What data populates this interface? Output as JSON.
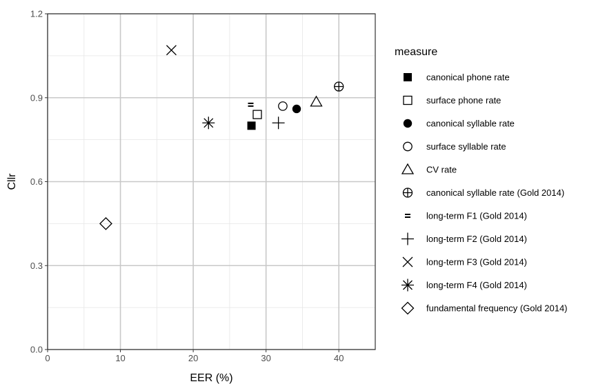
{
  "chart_data": {
    "type": "scatter",
    "xlabel": "EER (%)",
    "ylabel": "Cllr",
    "xlim": [
      0,
      45
    ],
    "ylim": [
      0,
      1.2
    ],
    "x_ticks": [
      0,
      10,
      20,
      30,
      40
    ],
    "y_ticks": [
      0.0,
      0.3,
      0.6,
      0.9,
      1.2
    ],
    "x_tick_labels": [
      "0",
      "10",
      "20",
      "30",
      "40"
    ],
    "y_tick_labels": [
      "0.0",
      "0.3",
      "0.6",
      "0.9",
      "1.2"
    ],
    "grid": true,
    "legend_title": "measure",
    "legend_position": "right",
    "series": [
      {
        "name": "canonical phone rate",
        "shape": "filled-square",
        "x": 28.0,
        "y": 0.8
      },
      {
        "name": "surface phone rate",
        "shape": "open-square",
        "x": 28.8,
        "y": 0.84
      },
      {
        "name": "canonical syllable rate",
        "shape": "filled-circle",
        "x": 34.2,
        "y": 0.86
      },
      {
        "name": "surface syllable rate",
        "shape": "open-circle",
        "x": 32.3,
        "y": 0.87
      },
      {
        "name": "CV rate",
        "shape": "open-triangle",
        "x": 36.9,
        "y": 0.885
      },
      {
        "name": "canonical syllable rate (Gold 2014)",
        "shape": "circle-plus",
        "x": 40.0,
        "y": 0.94
      },
      {
        "name": "long-term F1 (Gold 2014)",
        "shape": "equals",
        "x": 27.9,
        "y": 0.875
      },
      {
        "name": "long-term F2 (Gold 2014)",
        "shape": "plus",
        "x": 31.7,
        "y": 0.81
      },
      {
        "name": "long-term F3 (Gold 2014)",
        "shape": "cross",
        "x": 17.0,
        "y": 1.07
      },
      {
        "name": "long-term F4 (Gold 2014)",
        "shape": "asterisk",
        "x": 22.1,
        "y": 0.81
      },
      {
        "name": "fundamental frequency (Gold 2014)",
        "shape": "open-diamond",
        "x": 8.0,
        "y": 0.45
      }
    ],
    "colors": {
      "panel_background": "#ffffff",
      "panel_border": "#333333",
      "grid_major": "#c8c8c8",
      "grid_minor": "#e6e6e6",
      "point": "#000000",
      "tick_label": "#4d4d4d"
    }
  }
}
